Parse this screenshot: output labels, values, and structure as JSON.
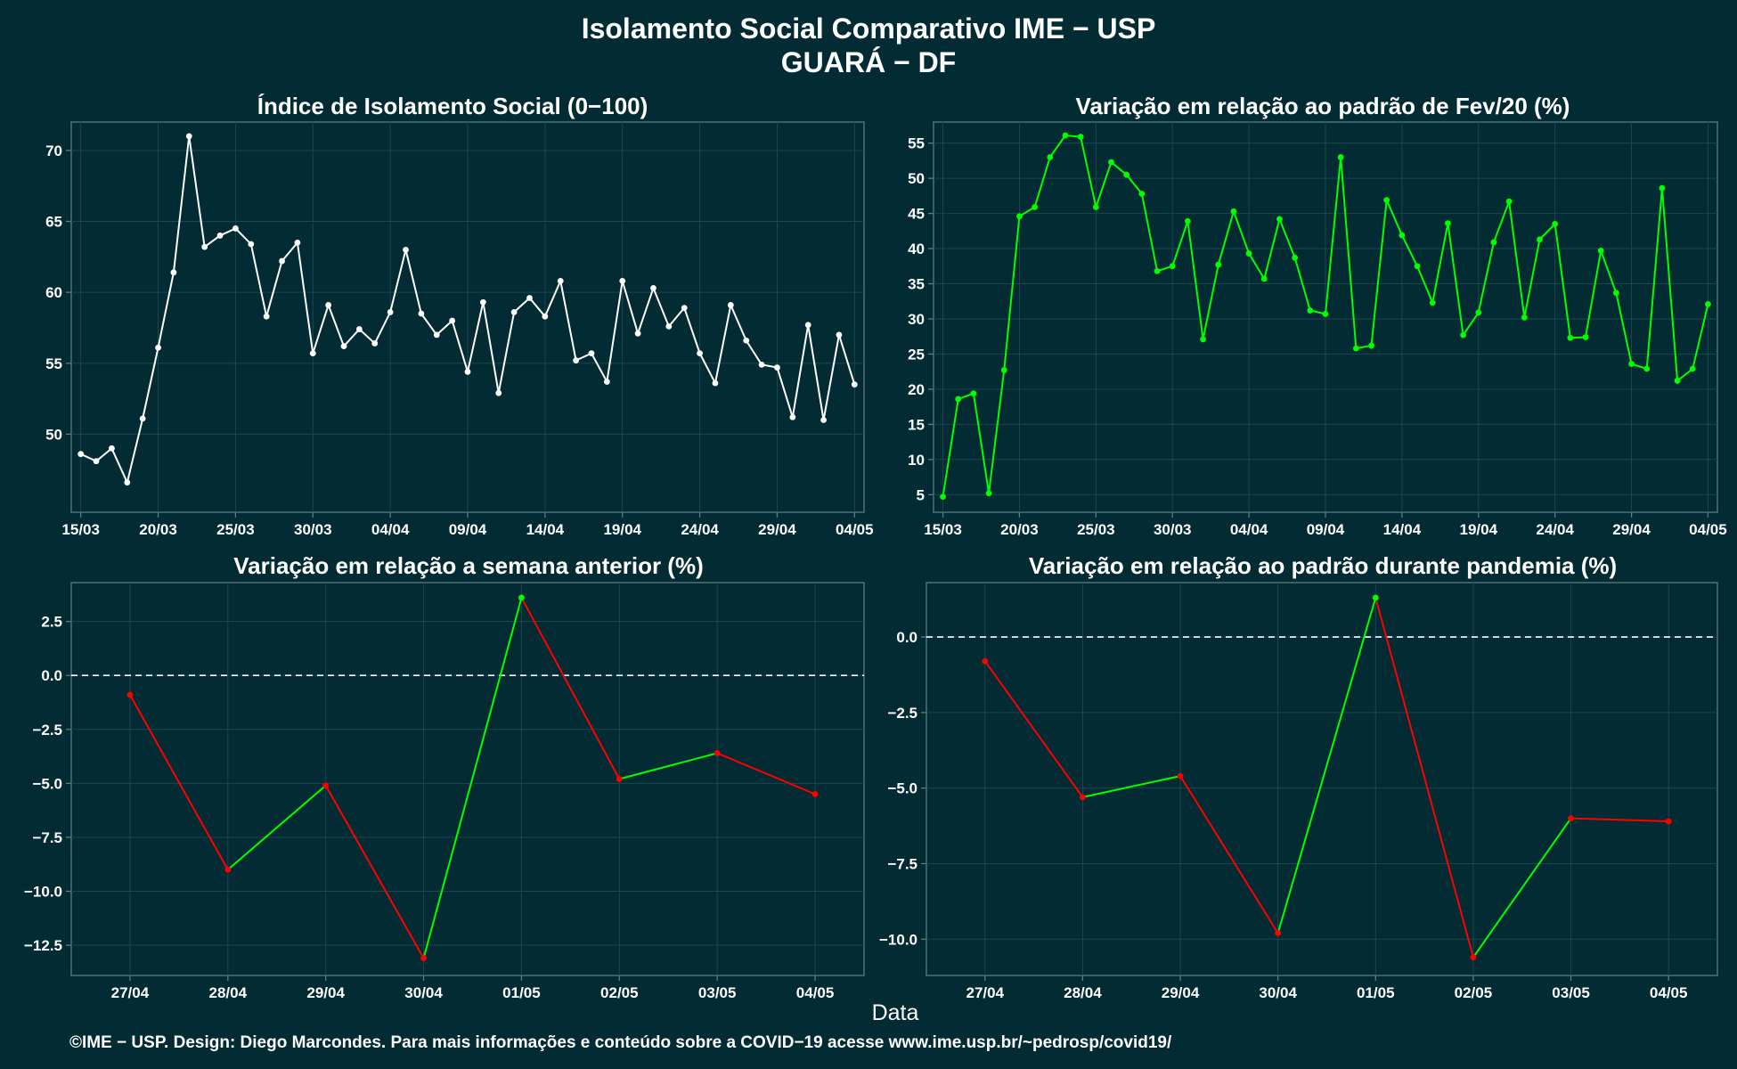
{
  "header": {
    "title_line1": "Isolamento Social Comparativo IME − USP",
    "title_line2": "GUARÁ − DF"
  },
  "xlabel": "Data",
  "footer": "©IME − USP. Design: Diego Marcondes. Para mais informações e conteúdo sobre a COVID−19 acesse www.ime.usp.br/~pedrosp/covid19/",
  "colors": {
    "background": "#022b33",
    "panel_border": "#5f7a80",
    "grid": "#1d4750",
    "white_series": "#ffffff",
    "green_series": "#00ff00",
    "red_series": "#ff0000"
  },
  "chart_data": [
    {
      "type": "line",
      "title": "Índice de Isolamento Social (0−100)",
      "xlabel": "Data",
      "ylabel": "",
      "x_start": "15/03",
      "x_tick_labels": [
        "15/03",
        "20/03",
        "25/03",
        "30/03",
        "04/04",
        "09/04",
        "14/04",
        "19/04",
        "24/04",
        "29/04",
        "04/05"
      ],
      "ylim": [
        44.5,
        72
      ],
      "y_ticks": [
        50,
        55,
        60,
        65,
        70
      ],
      "color": "#ffffff",
      "values": [
        48.6,
        48.1,
        49.0,
        46.6,
        51.1,
        56.1,
        61.4,
        71.0,
        63.2,
        64.0,
        64.5,
        63.4,
        58.3,
        62.2,
        63.5,
        55.7,
        59.1,
        56.2,
        57.4,
        56.4,
        58.6,
        63.0,
        58.5,
        57.0,
        58.0,
        54.4,
        59.3,
        52.9,
        58.6,
        59.6,
        58.3,
        60.8,
        55.2,
        55.7,
        53.7,
        60.8,
        57.1,
        60.3,
        57.6,
        58.9,
        55.7,
        53.6,
        59.1,
        56.6,
        54.9,
        54.7,
        51.2,
        57.7,
        51.0,
        57.0,
        53.5
      ]
    },
    {
      "type": "line",
      "title": "Variação em relação ao padrão de Fev/20 (%)",
      "xlabel": "Data",
      "ylabel": "",
      "x_start": "15/03",
      "x_tick_labels": [
        "15/03",
        "20/03",
        "25/03",
        "30/03",
        "04/04",
        "09/04",
        "14/04",
        "19/04",
        "24/04",
        "29/04",
        "04/05"
      ],
      "ylim": [
        2.5,
        58
      ],
      "y_ticks": [
        5,
        10,
        15,
        20,
        25,
        30,
        35,
        40,
        45,
        50,
        55
      ],
      "color": "#00ff00",
      "values": [
        4.7,
        18.6,
        19.4,
        5.2,
        22.7,
        44.6,
        45.9,
        53.0,
        56.1,
        55.9,
        45.9,
        52.3,
        50.5,
        47.8,
        36.8,
        37.5,
        43.9,
        27.1,
        37.7,
        45.3,
        39.3,
        35.7,
        44.2,
        38.7,
        31.2,
        30.7,
        53.0,
        25.8,
        26.2,
        46.9,
        41.9,
        37.5,
        32.3,
        43.6,
        27.7,
        30.9,
        40.9,
        46.7,
        30.2,
        41.3,
        43.5,
        27.3,
        27.4,
        39.7,
        33.7,
        23.6,
        22.9,
        48.6,
        21.2,
        22.9,
        32.1
      ]
    },
    {
      "type": "line",
      "title": "Variação em relação a semana anterior (%)",
      "xlabel": "Data",
      "ylabel": "",
      "categories": [
        "27/04",
        "28/04",
        "29/04",
        "30/04",
        "01/05",
        "02/05",
        "03/05",
        "04/05"
      ],
      "values": [
        -0.9,
        -9.0,
        -5.1,
        -13.1,
        3.6,
        -4.8,
        -3.6,
        -5.5
      ],
      "ylim": [
        -13.9,
        4.3
      ],
      "y_ticks": [
        -12.5,
        -10.0,
        -7.5,
        -5.0,
        -2.5,
        0.0,
        2.5
      ],
      "y_tick_labels": [
        "−12.5",
        "−10.0",
        "−7.5",
        "−5.0",
        "−2.5",
        "0.0",
        "2.5"
      ],
      "reference_line": 0
    },
    {
      "type": "line",
      "title": "Variação em relação ao padrão durante pandemia (%)",
      "xlabel": "Data",
      "ylabel": "",
      "categories": [
        "27/04",
        "28/04",
        "29/04",
        "30/04",
        "01/05",
        "02/05",
        "03/05",
        "04/05"
      ],
      "values": [
        -0.8,
        -5.3,
        -4.6,
        -9.8,
        1.3,
        -10.6,
        -6.0,
        -6.1
      ],
      "ylim": [
        -11.2,
        1.8
      ],
      "y_ticks": [
        -10.0,
        -7.5,
        -5.0,
        -2.5,
        0.0
      ],
      "y_tick_labels": [
        "−10.0",
        "−7.5",
        "−5.0",
        "−2.5",
        "0.0"
      ],
      "reference_line": 0
    }
  ]
}
